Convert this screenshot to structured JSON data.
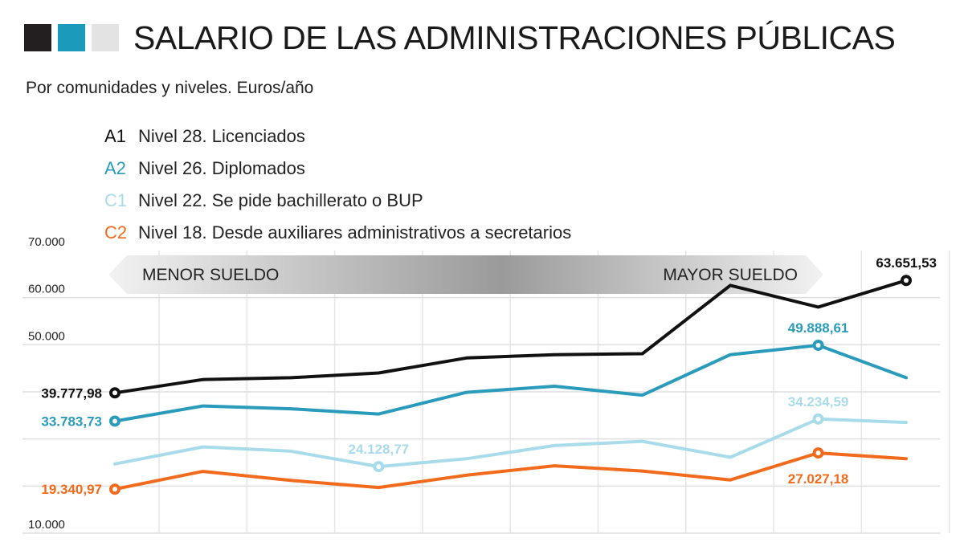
{
  "header": {
    "title": "SALARIO DE LAS ADMINISTRACIONES PÚBLICAS",
    "subtitle": "Por comunidades y niveles. Euros/año",
    "squares": [
      "#231f20",
      "#1b9bbb",
      "#e3e3e3"
    ]
  },
  "legend": [
    {
      "code": "A1",
      "desc": "Nivel 28. Licenciados",
      "color": "#111111"
    },
    {
      "code": "A2",
      "desc": "Nivel 26. Diplomados",
      "color": "#2a9bbb"
    },
    {
      "code": "C1",
      "desc": "Nivel 22. Se pide bachillerato o BUP",
      "color": "#a9dcea"
    },
    {
      "code": "C2",
      "desc": "Nivel 18. Desde auxiliares administrativos a secretarios",
      "color": "#f26a1b"
    }
  ],
  "banner": {
    "left": "MENOR SUELDO",
    "right": "MAYOR SUELDO"
  },
  "chart_data": {
    "type": "line",
    "ylim": [
      10000,
      70000
    ],
    "yticks": [
      {
        "value": 70000,
        "label": "70.000"
      },
      {
        "value": 60000,
        "label": "60.000"
      },
      {
        "value": 50000,
        "label": "50.000"
      },
      {
        "value": 10000,
        "label": "10.000"
      }
    ],
    "grid_values": [
      10000,
      20000,
      30000,
      40000,
      50000,
      60000
    ],
    "n_points": 10,
    "series": [
      {
        "name": "A1",
        "color": "#111111",
        "values": [
          39777.98,
          42600,
          43000,
          44000,
          47200,
          47900,
          48100,
          62600,
          58000,
          63651.53
        ],
        "markers": [
          0,
          9
        ]
      },
      {
        "name": "A2",
        "color": "#2a9bbb",
        "values": [
          33783.73,
          37000,
          36400,
          35300,
          39900,
          41200,
          39300,
          47900,
          49888.61,
          43000
        ],
        "markers": [
          0,
          8
        ]
      },
      {
        "name": "C1",
        "color": "#a9dcea",
        "values": [
          24700,
          28300,
          27400,
          24128.77,
          25800,
          28600,
          29500,
          26100,
          34234.59,
          33500
        ],
        "markers": [
          3,
          8
        ]
      },
      {
        "name": "C2",
        "color": "#f26a1b",
        "values": [
          19340.97,
          23100,
          21200,
          19700,
          22300,
          24300,
          23200,
          21300,
          27027.18,
          25800
        ],
        "markers": [
          0,
          8
        ]
      }
    ],
    "data_labels": [
      {
        "text": "39.777,98",
        "color": "#111111",
        "series": 0,
        "point": 0,
        "anchor": "end",
        "side": "left"
      },
      {
        "text": "63.651,53",
        "color": "#111111",
        "series": 0,
        "point": 9,
        "anchor": "end",
        "side": "above"
      },
      {
        "text": "33.783,73",
        "color": "#2a9bbb",
        "series": 1,
        "point": 0,
        "anchor": "end",
        "side": "left"
      },
      {
        "text": "49.888,61",
        "color": "#2a9bbb",
        "series": 1,
        "point": 8,
        "anchor": "middle",
        "side": "above"
      },
      {
        "text": "24.128,77",
        "color": "#a9dcea",
        "series": 2,
        "point": 3,
        "anchor": "middle",
        "side": "above"
      },
      {
        "text": "34.234,59",
        "color": "#a9dcea",
        "series": 2,
        "point": 8,
        "anchor": "middle",
        "side": "above"
      },
      {
        "text": "19.340,97",
        "color": "#f26a1b",
        "series": 3,
        "point": 0,
        "anchor": "end",
        "side": "left"
      },
      {
        "text": "27.027,18",
        "color": "#f26a1b",
        "series": 3,
        "point": 8,
        "anchor": "middle",
        "side": "below"
      }
    ]
  }
}
